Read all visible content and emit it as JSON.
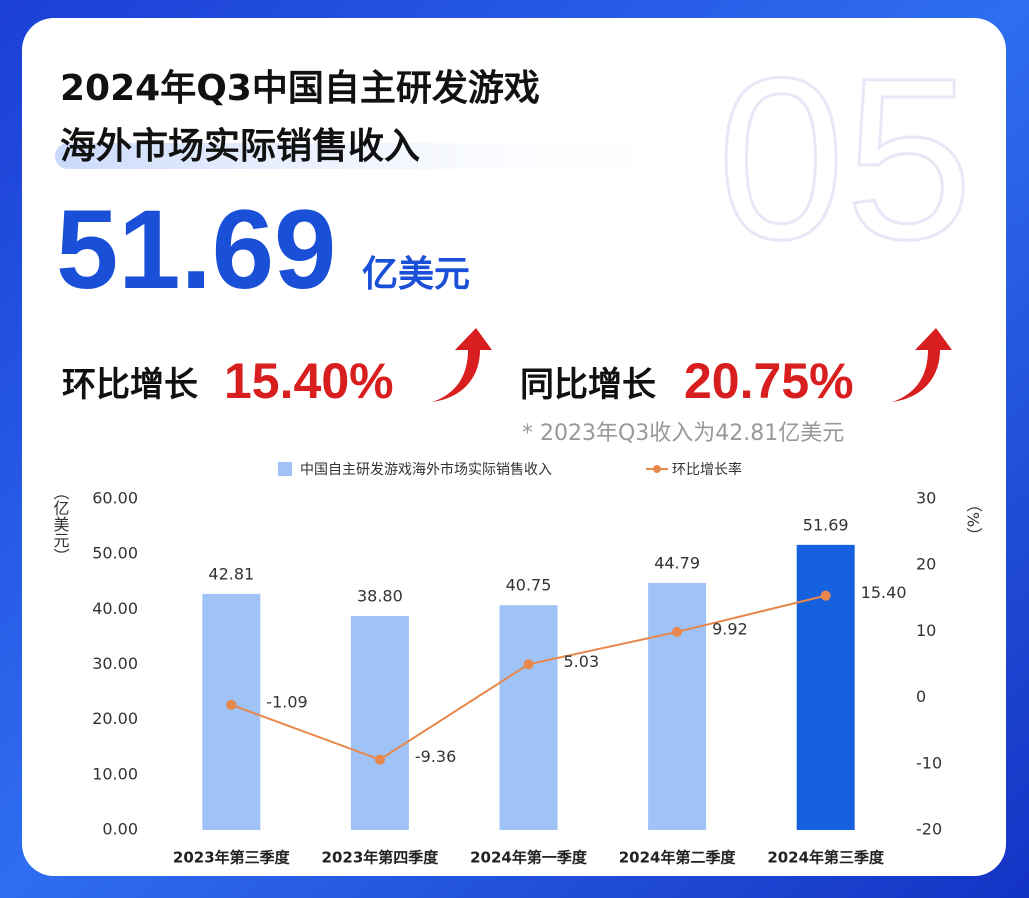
{
  "header": {
    "background_number": "05",
    "title_line1": "2024年Q3中国自主研发游戏",
    "title_line2": "海外市场实际销售收入",
    "headline_value": "51.69",
    "headline_unit": "亿美元",
    "qoq_label": "环比增长",
    "qoq_value": "15.40%",
    "yoy_label": "同比增长",
    "yoy_value": "20.75%",
    "note": "* 2023年Q3收入为42.81亿美元"
  },
  "chart_data": {
    "type": "bar-line",
    "categories": [
      "2023年第三季度",
      "2023年第四季度",
      "2024年第一季度",
      "2024年第二季度",
      "2024年第三季度"
    ],
    "y_label": "（亿美元）",
    "y2_label": "（%）",
    "grid": false,
    "series": [
      {
        "name": "中国自主研发游戏海外市场实际销售收入",
        "type": "bar",
        "color": "#9fc3f6",
        "colors": [
          "#9fc3f6",
          "#9fc3f6",
          "#9fc3f6",
          "#9fc3f6",
          "#1661e0"
        ],
        "values": [
          42.81,
          38.8,
          40.75,
          44.79,
          51.69
        ],
        "value_labels": [
          "42.81",
          "38.80",
          "40.75",
          "44.79",
          "51.69"
        ]
      },
      {
        "name": "环比增长率",
        "type": "line",
        "axis": "y2",
        "color": "#e7874b",
        "values": [
          -1.09,
          -9.36,
          5.03,
          9.92,
          15.4
        ],
        "value_labels": [
          "-1.09",
          "-9.36",
          "5.03",
          "9.92",
          "15.40"
        ]
      }
    ],
    "ylim": [
      0,
      60
    ],
    "yticks": [
      {
        "value": 0,
        "label": "0.00"
      },
      {
        "value": 10,
        "label": "10.00"
      },
      {
        "value": 20,
        "label": "20.00"
      },
      {
        "value": 30,
        "label": "30.00"
      },
      {
        "value": 40,
        "label": "40.00"
      },
      {
        "value": 50,
        "label": "50.00"
      },
      {
        "value": 60,
        "label": "60.00"
      }
    ],
    "y2lim": [
      -20,
      30
    ],
    "y2ticks": [
      -20,
      -10,
      0,
      10,
      20,
      30
    ]
  }
}
